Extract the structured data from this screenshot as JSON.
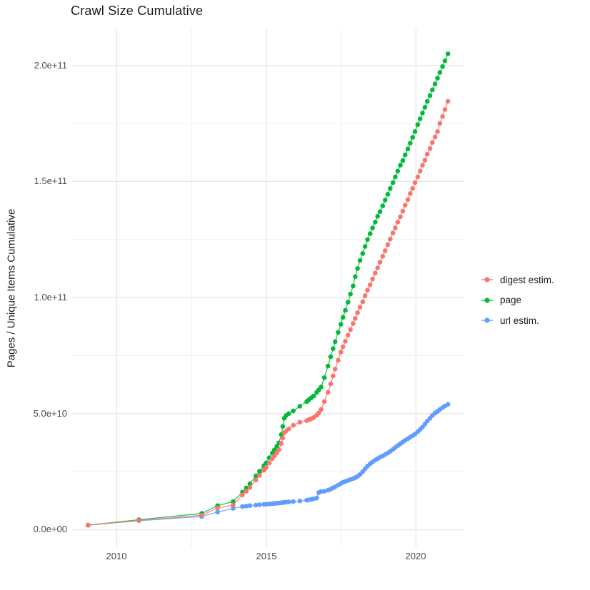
{
  "title": "Crawl Size Cumulative",
  "y_axis": {
    "title": "Pages / Unique Items Cumulative",
    "ticks": [
      "0.0e+00",
      "5.0e+10",
      "1.0e+11",
      "1.5e+11",
      "2.0e+11"
    ],
    "tick_values": [
      0,
      50000000000.0,
      100000000000.0,
      150000000000.0,
      200000000000.0
    ]
  },
  "x_axis": {
    "ticks": [
      "2010",
      "2015",
      "2020"
    ],
    "tick_values": [
      2010,
      2015,
      2020
    ],
    "minor_tick_values": [
      2012.5,
      2017.5
    ]
  },
  "legend": {
    "items": [
      {
        "label": "digest estim.",
        "color": "#F8766D"
      },
      {
        "label": "page",
        "color": "#00BA38"
      },
      {
        "label": "url estim.",
        "color": "#619CFF"
      }
    ]
  },
  "chart_data": {
    "type": "scatter",
    "title": "Crawl Size Cumulative",
    "xlabel": "",
    "ylabel": "Pages / Unique Items Cumulative",
    "xlim": [
      2008.5,
      2021.65
    ],
    "ylim": [
      0,
      215000000000.0
    ],
    "grid": true,
    "legend_position": "right",
    "y_unit": 10000000000.0,
    "y_minor_values_e10": [
      2.5,
      7.5,
      12.5,
      17.5
    ],
    "x": [
      2009.04,
      2010.74,
      2012.84,
      2013.37,
      2013.89,
      2014.2,
      2014.33,
      2014.45,
      2014.65,
      2014.77,
      2014.92,
      2014.99,
      2015.1,
      2015.2,
      2015.27,
      2015.35,
      2015.42,
      2015.5,
      2015.55,
      2015.6,
      2015.66,
      2015.75,
      2015.9,
      2016.12,
      2016.35,
      2016.42,
      2016.5,
      2016.58,
      2016.68,
      2016.75,
      2016.83,
      2016.94,
      2017.06,
      2017.15,
      2017.23,
      2017.3,
      2017.4,
      2017.49,
      2017.56,
      2017.64,
      2017.73,
      2017.81,
      2017.9,
      2017.97,
      2018.05,
      2018.13,
      2018.22,
      2018.3,
      2018.38,
      2018.47,
      2018.55,
      2018.64,
      2018.72,
      2018.8,
      2018.89,
      2018.97,
      2019.06,
      2019.14,
      2019.23,
      2019.31,
      2019.39,
      2019.48,
      2019.56,
      2019.64,
      2019.73,
      2019.81,
      2019.89,
      2019.97,
      2020.06,
      2020.14,
      2020.22,
      2020.3,
      2020.38,
      2020.47,
      2020.55,
      2020.64,
      2020.72,
      2020.8,
      2020.89,
      2020.97,
      2021.07
    ],
    "series": [
      {
        "name": "digest estim.",
        "color": "#F8766D",
        "values_e10": [
          0.2,
          0.4,
          0.62,
          0.94,
          1.06,
          1.5,
          1.66,
          1.82,
          2.14,
          2.34,
          2.56,
          2.68,
          2.88,
          3.06,
          3.18,
          3.32,
          3.44,
          3.72,
          3.95,
          4.18,
          4.25,
          4.35,
          4.5,
          4.63,
          4.7,
          4.74,
          4.78,
          4.83,
          4.93,
          5.03,
          5.18,
          5.52,
          5.92,
          6.28,
          6.62,
          6.92,
          7.3,
          7.65,
          7.88,
          8.12,
          8.38,
          8.62,
          8.88,
          9.1,
          9.35,
          9.58,
          9.82,
          10.08,
          10.32,
          10.55,
          10.8,
          11.05,
          11.28,
          11.52,
          11.78,
          12.02,
          12.28,
          12.52,
          12.78,
          13.0,
          13.25,
          13.48,
          13.72,
          13.98,
          14.22,
          14.48,
          14.7,
          14.95,
          15.2,
          15.45,
          15.7,
          15.92,
          16.18,
          16.42,
          16.68,
          16.92,
          17.15,
          17.5,
          17.8,
          18.1,
          18.45
        ]
      },
      {
        "name": "page",
        "color": "#00BA38",
        "values_e10": [
          0.2,
          0.43,
          0.7,
          1.04,
          1.21,
          1.62,
          1.8,
          1.98,
          2.32,
          2.52,
          2.76,
          2.88,
          3.1,
          3.3,
          3.44,
          3.6,
          3.74,
          4.1,
          4.45,
          4.8,
          4.92,
          5.0,
          5.12,
          5.32,
          5.52,
          5.6,
          5.68,
          5.76,
          5.92,
          6.02,
          6.15,
          6.55,
          7.05,
          7.45,
          7.8,
          8.1,
          8.5,
          8.85,
          9.15,
          9.45,
          9.8,
          10.15,
          10.5,
          10.9,
          11.25,
          11.6,
          11.9,
          12.2,
          12.5,
          12.75,
          13.0,
          13.25,
          13.5,
          13.7,
          13.95,
          14.2,
          14.45,
          14.7,
          14.95,
          15.2,
          15.45,
          15.7,
          15.9,
          16.15,
          16.4,
          16.65,
          16.9,
          17.15,
          17.45,
          17.7,
          17.95,
          18.2,
          18.45,
          18.7,
          18.95,
          19.2,
          19.45,
          19.7,
          19.95,
          20.2,
          20.5
        ]
      },
      {
        "name": "url estim.",
        "color": "#619CFF",
        "values_e10": [
          0.2,
          0.39,
          0.57,
          0.76,
          0.92,
          1.0,
          1.02,
          1.04,
          1.06,
          1.08,
          1.09,
          1.1,
          1.11,
          1.12,
          1.13,
          1.14,
          1.15,
          1.16,
          1.17,
          1.18,
          1.19,
          1.2,
          1.21,
          1.24,
          1.27,
          1.29,
          1.31,
          1.33,
          1.36,
          1.6,
          1.64,
          1.66,
          1.7,
          1.75,
          1.8,
          1.85,
          1.92,
          1.99,
          2.04,
          2.08,
          2.12,
          2.16,
          2.2,
          2.24,
          2.3,
          2.38,
          2.5,
          2.62,
          2.74,
          2.84,
          2.92,
          3.0,
          3.06,
          3.12,
          3.18,
          3.24,
          3.3,
          3.38,
          3.46,
          3.54,
          3.62,
          3.7,
          3.78,
          3.85,
          3.92,
          3.99,
          4.05,
          4.12,
          4.22,
          4.32,
          4.42,
          4.55,
          4.68,
          4.8,
          4.92,
          5.02,
          5.1,
          5.18,
          5.26,
          5.33,
          5.4
        ]
      }
    ]
  }
}
